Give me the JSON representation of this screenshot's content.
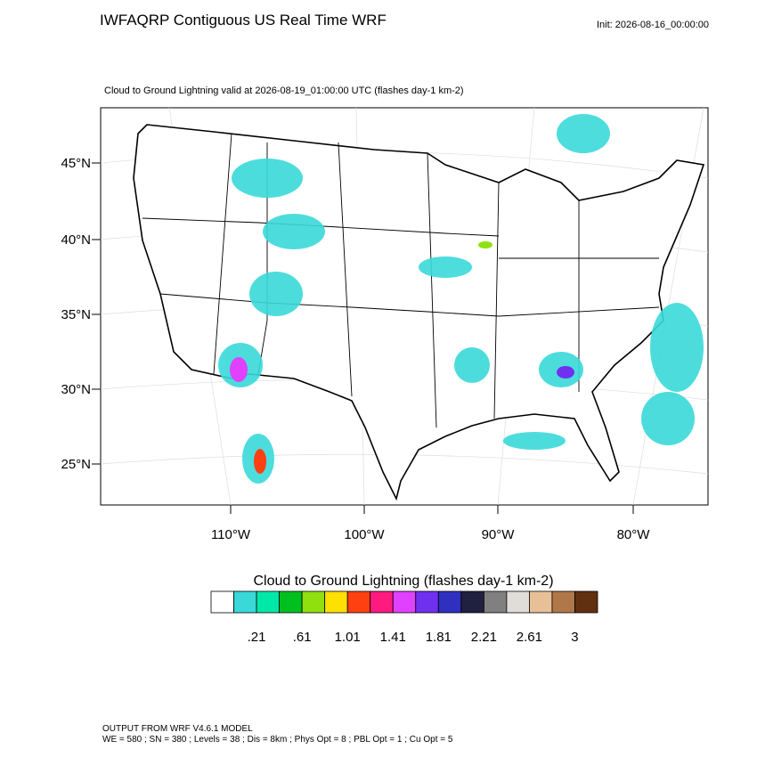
{
  "header": {
    "title": "IWFAQRP Contiguous US Real Time WRF",
    "init": "Init: 2026-08-16_00:00:00",
    "subtitle": "Cloud to Ground Lightning valid at 2026-08-19_01:00:00 UTC   (flashes day-1 km-2)"
  },
  "map": {
    "lat_labels": [
      "45°N",
      "40°N",
      "35°N",
      "30°N",
      "25°N"
    ],
    "lon_labels": [
      "110°W",
      "100°W",
      "90°W",
      "80°W"
    ]
  },
  "colorbar": {
    "title": "Cloud to Ground Lightning  (flashes day-1 km-2)",
    "colors": [
      "#ffffff",
      "#3ad9d9",
      "#00e8a8",
      "#00c020",
      "#90e010",
      "#ffe000",
      "#ff4010",
      "#ff1a80",
      "#e040ff",
      "#7030f0",
      "#3030c0",
      "#202040",
      "#808080",
      "#e0ddd8",
      "#e8c098",
      "#b07848",
      "#603010"
    ],
    "ticks": [
      {
        "value": 0.21,
        "label": ".21"
      },
      {
        "value": 0.61,
        "label": ".61"
      },
      {
        "value": 1.01,
        "label": "1.01"
      },
      {
        "value": 1.41,
        "label": "1.41"
      },
      {
        "value": 1.81,
        "label": "1.81"
      },
      {
        "value": 2.21,
        "label": "2.21"
      },
      {
        "value": 2.61,
        "label": "2.61"
      },
      3
    ]
  },
  "footer": {
    "lines": [
      "OUTPUT FROM WRF V4.6.1 MODEL",
      "WE = 580 ; SN = 380 ; Levels = 38 ; Dis = 8km ; Phys Opt = 8 ; PBL Opt = 1 ; Cu Opt = 5"
    ]
  }
}
